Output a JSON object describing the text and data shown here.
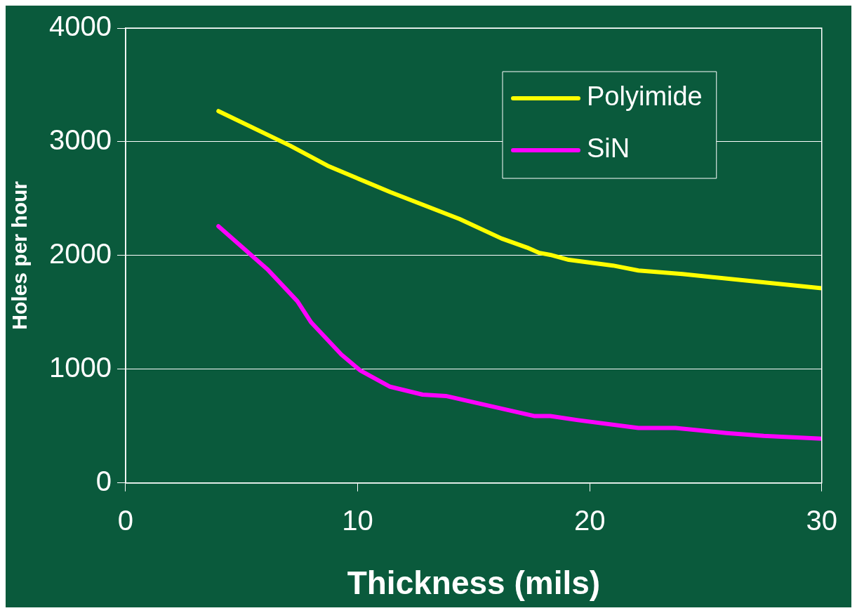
{
  "chart_data": {
    "type": "line",
    "xlabel": "Thickness (mils)",
    "ylabel": "Holes per hour",
    "xlim": [
      0,
      30
    ],
    "xticks": [
      0,
      10,
      20,
      30
    ],
    "ylim": [
      0,
      4000
    ],
    "yticks": [
      0,
      1000,
      2000,
      3000,
      4000
    ],
    "grid": "y",
    "legend": "top right",
    "marker": "none",
    "line_style": "solid",
    "series": [
      {
        "name": "Polyimide",
        "color": "#ffff00",
        "x": [
          4,
          7.1,
          8.7,
          11.4,
          14.4,
          16.2,
          17.3,
          17.8,
          18.3,
          19.1,
          21,
          22.1,
          24,
          30
        ],
        "values": [
          3270,
          2965,
          2790,
          2558,
          2320,
          2150,
          2070,
          2025,
          2006,
          1962,
          1912,
          1868,
          1837,
          1712
        ]
      },
      {
        "name": "SiN",
        "color": "#ff00ff",
        "x": [
          4,
          6.1,
          7.4,
          8,
          9.3,
          10.1,
          11.4,
          12.8,
          13.8,
          15.7,
          17.6,
          18.3,
          19.5,
          22.1,
          23.7,
          25.9,
          27.5,
          30
        ],
        "values": [
          2257,
          1881,
          1599,
          1411,
          1129,
          991,
          846,
          777,
          765,
          677,
          589,
          589,
          552,
          483,
          483,
          439,
          414,
          389
        ]
      }
    ]
  }
}
